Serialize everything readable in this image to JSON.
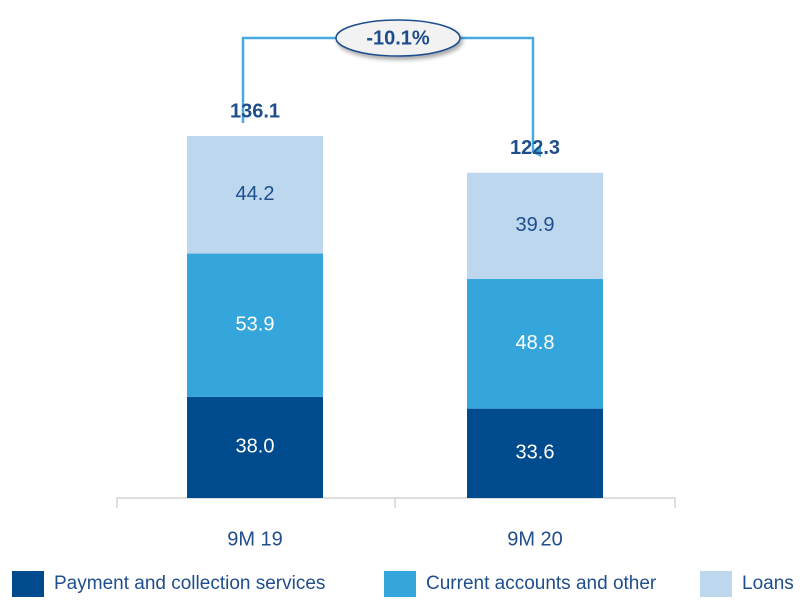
{
  "chart_data": {
    "type": "stacked_bar",
    "categories": [
      "9M 19",
      "9M 20"
    ],
    "series": [
      {
        "name": "Payment and collection services",
        "color": "#004b8d",
        "values": [
          38.0,
          33.6
        ],
        "value_labels": [
          "38.0",
          "33.6"
        ]
      },
      {
        "name": "Current accounts and other",
        "color": "#35a6dc",
        "values": [
          53.9,
          48.8
        ],
        "value_labels": [
          "53.9",
          "48.8"
        ]
      },
      {
        "name": "Loans",
        "color": "#bcd7ee",
        "values": [
          44.2,
          39.9
        ],
        "value_labels": [
          "44.2",
          "39.9"
        ]
      }
    ],
    "totals": [
      136.1,
      122.3
    ],
    "annotations": [
      "-10.1%"
    ],
    "legend": "bottom"
  }
}
